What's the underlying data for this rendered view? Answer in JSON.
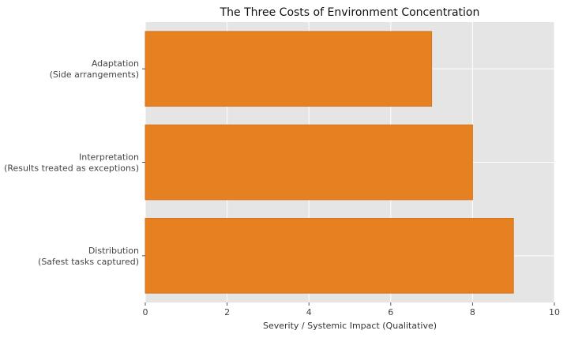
{
  "chart_data": {
    "type": "bar",
    "orientation": "horizontal",
    "title": "The Three Costs of Environment Concentration",
    "xlabel": "Severity / Systemic Impact (Qualitative)",
    "ylabel": "",
    "xlim": [
      0,
      10
    ],
    "xticks": [
      0,
      2,
      4,
      6,
      8,
      10
    ],
    "grid": true,
    "categories": [
      [
        "Adaptation",
        "(Side arrangements)"
      ],
      [
        "Interpretation",
        "(Results treated as exceptions)"
      ],
      [
        "Distribution",
        "(Safest tasks captured)"
      ]
    ],
    "values": [
      7,
      8,
      9
    ],
    "colors": {
      "bar": "#e68121",
      "bar_edge": "#d9731a",
      "plot_background": "#e5e5e5",
      "grid": "#ffffff"
    }
  }
}
